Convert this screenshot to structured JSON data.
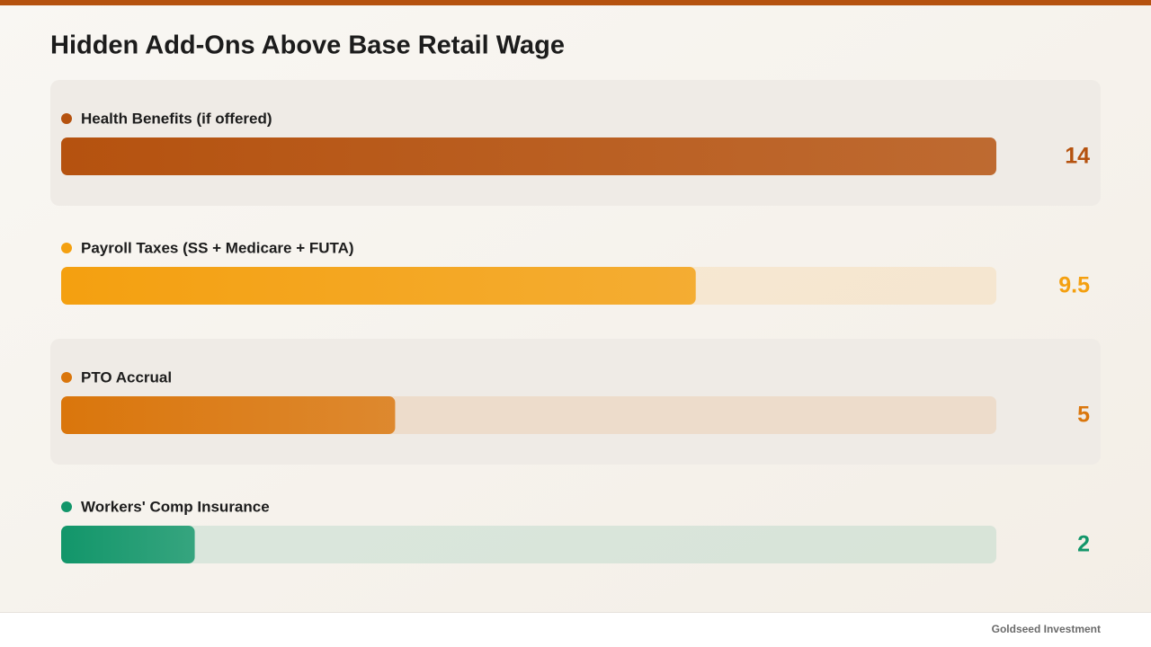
{
  "chart_data": {
    "type": "bar",
    "title": "Hidden Add-Ons Above Base Retail Wage",
    "categories": [
      "Health Benefits (if offered)",
      "Payroll Taxes (SS + Medicare + FUTA)",
      "PTO Accrual",
      "Workers' Comp Insurance"
    ],
    "values": [
      14,
      9.5,
      5,
      2
    ],
    "colors": [
      "#b5520f",
      "#f4a010",
      "#da760c",
      "#12966a"
    ]
  },
  "footer": "Goldseed Investment"
}
